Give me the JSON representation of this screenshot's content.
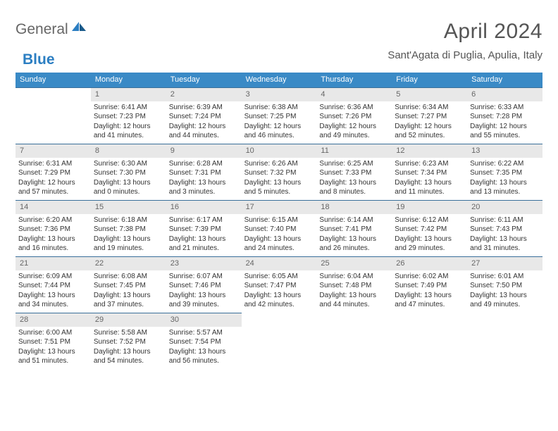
{
  "logo": {
    "general": "General",
    "blue": "Blue"
  },
  "title": "April 2024",
  "location": "Sant'Agata di Puglia, Apulia, Italy",
  "colors": {
    "header_bg": "#3a8ac6",
    "header_text": "#ffffff",
    "daynum_bg": "#e8e8e8",
    "border": "#3a6f9a",
    "text": "#333333",
    "logo_gray": "#666666",
    "logo_blue": "#2b7ec2"
  },
  "days_of_week": [
    "Sunday",
    "Monday",
    "Tuesday",
    "Wednesday",
    "Thursday",
    "Friday",
    "Saturday"
  ],
  "calendar": {
    "type": "table",
    "columns": 7,
    "rows": 5,
    "cells": [
      [
        {
          "blank": true
        },
        {
          "day": "1",
          "sunrise": "Sunrise: 6:41 AM",
          "sunset": "Sunset: 7:23 PM",
          "daylight": "Daylight: 12 hours and 41 minutes."
        },
        {
          "day": "2",
          "sunrise": "Sunrise: 6:39 AM",
          "sunset": "Sunset: 7:24 PM",
          "daylight": "Daylight: 12 hours and 44 minutes."
        },
        {
          "day": "3",
          "sunrise": "Sunrise: 6:38 AM",
          "sunset": "Sunset: 7:25 PM",
          "daylight": "Daylight: 12 hours and 46 minutes."
        },
        {
          "day": "4",
          "sunrise": "Sunrise: 6:36 AM",
          "sunset": "Sunset: 7:26 PM",
          "daylight": "Daylight: 12 hours and 49 minutes."
        },
        {
          "day": "5",
          "sunrise": "Sunrise: 6:34 AM",
          "sunset": "Sunset: 7:27 PM",
          "daylight": "Daylight: 12 hours and 52 minutes."
        },
        {
          "day": "6",
          "sunrise": "Sunrise: 6:33 AM",
          "sunset": "Sunset: 7:28 PM",
          "daylight": "Daylight: 12 hours and 55 minutes."
        }
      ],
      [
        {
          "day": "7",
          "sunrise": "Sunrise: 6:31 AM",
          "sunset": "Sunset: 7:29 PM",
          "daylight": "Daylight: 12 hours and 57 minutes."
        },
        {
          "day": "8",
          "sunrise": "Sunrise: 6:30 AM",
          "sunset": "Sunset: 7:30 PM",
          "daylight": "Daylight: 13 hours and 0 minutes."
        },
        {
          "day": "9",
          "sunrise": "Sunrise: 6:28 AM",
          "sunset": "Sunset: 7:31 PM",
          "daylight": "Daylight: 13 hours and 3 minutes."
        },
        {
          "day": "10",
          "sunrise": "Sunrise: 6:26 AM",
          "sunset": "Sunset: 7:32 PM",
          "daylight": "Daylight: 13 hours and 5 minutes."
        },
        {
          "day": "11",
          "sunrise": "Sunrise: 6:25 AM",
          "sunset": "Sunset: 7:33 PM",
          "daylight": "Daylight: 13 hours and 8 minutes."
        },
        {
          "day": "12",
          "sunrise": "Sunrise: 6:23 AM",
          "sunset": "Sunset: 7:34 PM",
          "daylight": "Daylight: 13 hours and 11 minutes."
        },
        {
          "day": "13",
          "sunrise": "Sunrise: 6:22 AM",
          "sunset": "Sunset: 7:35 PM",
          "daylight": "Daylight: 13 hours and 13 minutes."
        }
      ],
      [
        {
          "day": "14",
          "sunrise": "Sunrise: 6:20 AM",
          "sunset": "Sunset: 7:36 PM",
          "daylight": "Daylight: 13 hours and 16 minutes."
        },
        {
          "day": "15",
          "sunrise": "Sunrise: 6:18 AM",
          "sunset": "Sunset: 7:38 PM",
          "daylight": "Daylight: 13 hours and 19 minutes."
        },
        {
          "day": "16",
          "sunrise": "Sunrise: 6:17 AM",
          "sunset": "Sunset: 7:39 PM",
          "daylight": "Daylight: 13 hours and 21 minutes."
        },
        {
          "day": "17",
          "sunrise": "Sunrise: 6:15 AM",
          "sunset": "Sunset: 7:40 PM",
          "daylight": "Daylight: 13 hours and 24 minutes."
        },
        {
          "day": "18",
          "sunrise": "Sunrise: 6:14 AM",
          "sunset": "Sunset: 7:41 PM",
          "daylight": "Daylight: 13 hours and 26 minutes."
        },
        {
          "day": "19",
          "sunrise": "Sunrise: 6:12 AM",
          "sunset": "Sunset: 7:42 PM",
          "daylight": "Daylight: 13 hours and 29 minutes."
        },
        {
          "day": "20",
          "sunrise": "Sunrise: 6:11 AM",
          "sunset": "Sunset: 7:43 PM",
          "daylight": "Daylight: 13 hours and 31 minutes."
        }
      ],
      [
        {
          "day": "21",
          "sunrise": "Sunrise: 6:09 AM",
          "sunset": "Sunset: 7:44 PM",
          "daylight": "Daylight: 13 hours and 34 minutes."
        },
        {
          "day": "22",
          "sunrise": "Sunrise: 6:08 AM",
          "sunset": "Sunset: 7:45 PM",
          "daylight": "Daylight: 13 hours and 37 minutes."
        },
        {
          "day": "23",
          "sunrise": "Sunrise: 6:07 AM",
          "sunset": "Sunset: 7:46 PM",
          "daylight": "Daylight: 13 hours and 39 minutes."
        },
        {
          "day": "24",
          "sunrise": "Sunrise: 6:05 AM",
          "sunset": "Sunset: 7:47 PM",
          "daylight": "Daylight: 13 hours and 42 minutes."
        },
        {
          "day": "25",
          "sunrise": "Sunrise: 6:04 AM",
          "sunset": "Sunset: 7:48 PM",
          "daylight": "Daylight: 13 hours and 44 minutes."
        },
        {
          "day": "26",
          "sunrise": "Sunrise: 6:02 AM",
          "sunset": "Sunset: 7:49 PM",
          "daylight": "Daylight: 13 hours and 47 minutes."
        },
        {
          "day": "27",
          "sunrise": "Sunrise: 6:01 AM",
          "sunset": "Sunset: 7:50 PM",
          "daylight": "Daylight: 13 hours and 49 minutes."
        }
      ],
      [
        {
          "day": "28",
          "sunrise": "Sunrise: 6:00 AM",
          "sunset": "Sunset: 7:51 PM",
          "daylight": "Daylight: 13 hours and 51 minutes."
        },
        {
          "day": "29",
          "sunrise": "Sunrise: 5:58 AM",
          "sunset": "Sunset: 7:52 PM",
          "daylight": "Daylight: 13 hours and 54 minutes."
        },
        {
          "day": "30",
          "sunrise": "Sunrise: 5:57 AM",
          "sunset": "Sunset: 7:54 PM",
          "daylight": "Daylight: 13 hours and 56 minutes."
        },
        {
          "blank": true
        },
        {
          "blank": true
        },
        {
          "blank": true
        },
        {
          "blank": true
        }
      ]
    ]
  }
}
